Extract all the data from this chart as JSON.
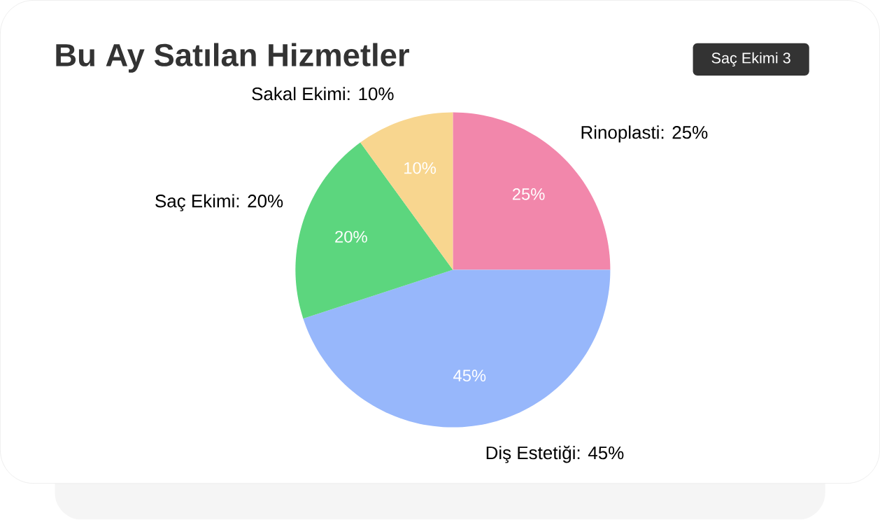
{
  "chart_data": {
    "type": "pie",
    "title": "Bu Ay Satılan Hizmetler",
    "categories": [
      "Rinoplasti: 25%",
      "Diş Estetiği: 45%",
      "Saç Ekimi: 20%",
      "Sakal Ekimi: 10%"
    ],
    "values": [
      25,
      45,
      20,
      10
    ],
    "colors": [
      "#f287ab",
      "#97b7fb",
      "#5cd67e",
      "#f8d68f"
    ],
    "value_labels": [
      "25%",
      "45%",
      "20%",
      "10%"
    ],
    "annotations": [
      "Saç Ekimi 3"
    ]
  }
}
